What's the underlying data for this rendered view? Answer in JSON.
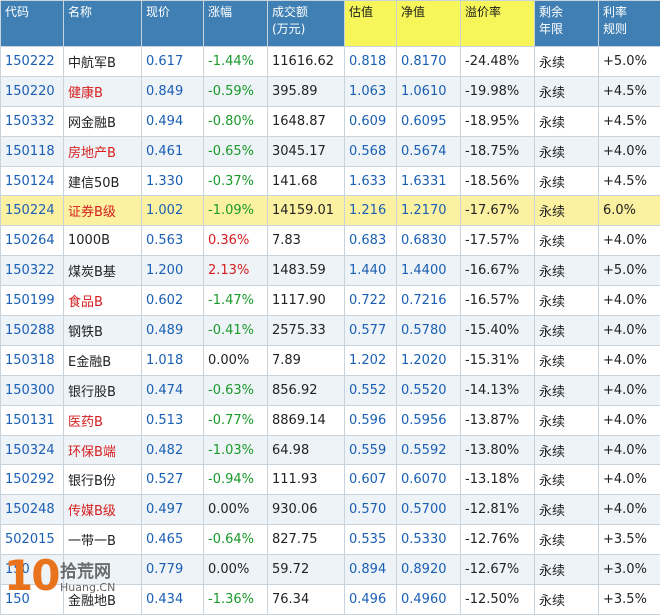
{
  "columns": [
    {
      "key": "code",
      "label": "代码"
    },
    {
      "key": "name",
      "label": "名称"
    },
    {
      "key": "price",
      "label": "现价"
    },
    {
      "key": "change",
      "label": "涨幅"
    },
    {
      "key": "volume",
      "label": "成交额\n(万元)"
    },
    {
      "key": "est",
      "label": "估值"
    },
    {
      "key": "nav",
      "label": "净值"
    },
    {
      "key": "premium",
      "label": "溢价率"
    },
    {
      "key": "term",
      "label": "剩余\n年限"
    },
    {
      "key": "rate",
      "label": "利率\n规则"
    }
  ],
  "highlight_header_color": "#f6f65a",
  "header_color": "#3f7fb3",
  "rows": [
    {
      "code": "150222",
      "name": "中航军B",
      "name_red": false,
      "price": "0.617",
      "change": "-1.44%",
      "volume": "11616.62",
      "est": "0.818",
      "nav": "0.8170",
      "premium": "-24.48%",
      "term": "永续",
      "rate": "+5.0%"
    },
    {
      "code": "150220",
      "name": "健康B",
      "name_red": true,
      "price": "0.849",
      "change": "-0.59%",
      "volume": "395.89",
      "est": "1.063",
      "nav": "1.0610",
      "premium": "-19.98%",
      "term": "永续",
      "rate": "+4.5%"
    },
    {
      "code": "150332",
      "name": "网金融B",
      "name_red": false,
      "price": "0.494",
      "change": "-0.80%",
      "volume": "1648.87",
      "est": "0.609",
      "nav": "0.6095",
      "premium": "-18.95%",
      "term": "永续",
      "rate": "+4.5%"
    },
    {
      "code": "150118",
      "name": "房地产B",
      "name_red": true,
      "price": "0.461",
      "change": "-0.65%",
      "volume": "3045.17",
      "est": "0.568",
      "nav": "0.5674",
      "premium": "-18.75%",
      "term": "永续",
      "rate": "+4.0%"
    },
    {
      "code": "150124",
      "name": "建信50B",
      "name_red": false,
      "price": "1.330",
      "change": "-0.37%",
      "volume": "141.68",
      "est": "1.633",
      "nav": "1.6331",
      "premium": "-18.56%",
      "term": "永续",
      "rate": "+4.5%"
    },
    {
      "code": "150224",
      "name": "证券B级",
      "name_red": true,
      "price": "1.002",
      "change": "-1.09%",
      "volume": "14159.01",
      "est": "1.216",
      "nav": "1.2170",
      "premium": "-17.67%",
      "term": "永续",
      "rate": "6.0%",
      "highlight": true
    },
    {
      "code": "150264",
      "name": "1000B",
      "name_red": false,
      "price": "0.563",
      "change": "0.36%",
      "volume": "7.83",
      "est": "0.683",
      "nav": "0.6830",
      "premium": "-17.57%",
      "term": "永续",
      "rate": "+4.0%"
    },
    {
      "code": "150322",
      "name": "煤炭B基",
      "name_red": false,
      "price": "1.200",
      "change": "2.13%",
      "volume": "1483.59",
      "est": "1.440",
      "nav": "1.4400",
      "premium": "-16.67%",
      "term": "永续",
      "rate": "+5.0%"
    },
    {
      "code": "150199",
      "name": "食品B",
      "name_red": true,
      "price": "0.602",
      "change": "-1.47%",
      "volume": "1117.90",
      "est": "0.722",
      "nav": "0.7216",
      "premium": "-16.57%",
      "term": "永续",
      "rate": "+4.0%"
    },
    {
      "code": "150288",
      "name": "钢铁B",
      "name_red": false,
      "price": "0.489",
      "change": "-0.41%",
      "volume": "2575.33",
      "est": "0.577",
      "nav": "0.5780",
      "premium": "-15.40%",
      "term": "永续",
      "rate": "+4.0%"
    },
    {
      "code": "150318",
      "name": "E金融B",
      "name_red": false,
      "price": "1.018",
      "change": "0.00%",
      "volume": "7.89",
      "est": "1.202",
      "nav": "1.2020",
      "premium": "-15.31%",
      "term": "永续",
      "rate": "+4.0%"
    },
    {
      "code": "150300",
      "name": "银行股B",
      "name_red": false,
      "price": "0.474",
      "change": "-0.63%",
      "volume": "856.92",
      "est": "0.552",
      "nav": "0.5520",
      "premium": "-14.13%",
      "term": "永续",
      "rate": "+4.0%"
    },
    {
      "code": "150131",
      "name": "医药B",
      "name_red": true,
      "price": "0.513",
      "change": "-0.77%",
      "volume": "8869.14",
      "est": "0.596",
      "nav": "0.5956",
      "premium": "-13.87%",
      "term": "永续",
      "rate": "+4.0%"
    },
    {
      "code": "150324",
      "name": "环保B端",
      "name_red": true,
      "price": "0.482",
      "change": "-1.03%",
      "volume": "64.98",
      "est": "0.559",
      "nav": "0.5592",
      "premium": "-13.80%",
      "term": "永续",
      "rate": "+4.0%"
    },
    {
      "code": "150292",
      "name": "银行B份",
      "name_red": false,
      "price": "0.527",
      "change": "-0.94%",
      "volume": "111.93",
      "est": "0.607",
      "nav": "0.6070",
      "premium": "-13.18%",
      "term": "永续",
      "rate": "+4.0%"
    },
    {
      "code": "150248",
      "name": "传媒B级",
      "name_red": true,
      "price": "0.497",
      "change": "0.00%",
      "volume": "930.06",
      "est": "0.570",
      "nav": "0.5700",
      "premium": "-12.81%",
      "term": "永续",
      "rate": "+4.0%"
    },
    {
      "code": "502015",
      "name": "一带一B",
      "name_red": false,
      "price": "0.465",
      "change": "-0.64%",
      "volume": "827.75",
      "est": "0.535",
      "nav": "0.5330",
      "premium": "-12.76%",
      "term": "永续",
      "rate": "+3.5%"
    },
    {
      "code": "150",
      "name": "",
      "name_red": false,
      "price": "0.779",
      "change": "0.00%",
      "volume": "59.72",
      "est": "0.894",
      "nav": "0.8920",
      "premium": "-12.67%",
      "term": "永续",
      "rate": "+3.0%"
    },
    {
      "code": "150",
      "name": "金融地B",
      "name_red": false,
      "price": "0.434",
      "change": "-1.36%",
      "volume": "76.34",
      "est": "0.496",
      "nav": "0.4960",
      "premium": "-12.50%",
      "term": "永续",
      "rate": "+3.5%"
    }
  ],
  "watermark": {
    "number": "10",
    "site": "拾荒网",
    "domain": "Huang.CN"
  }
}
